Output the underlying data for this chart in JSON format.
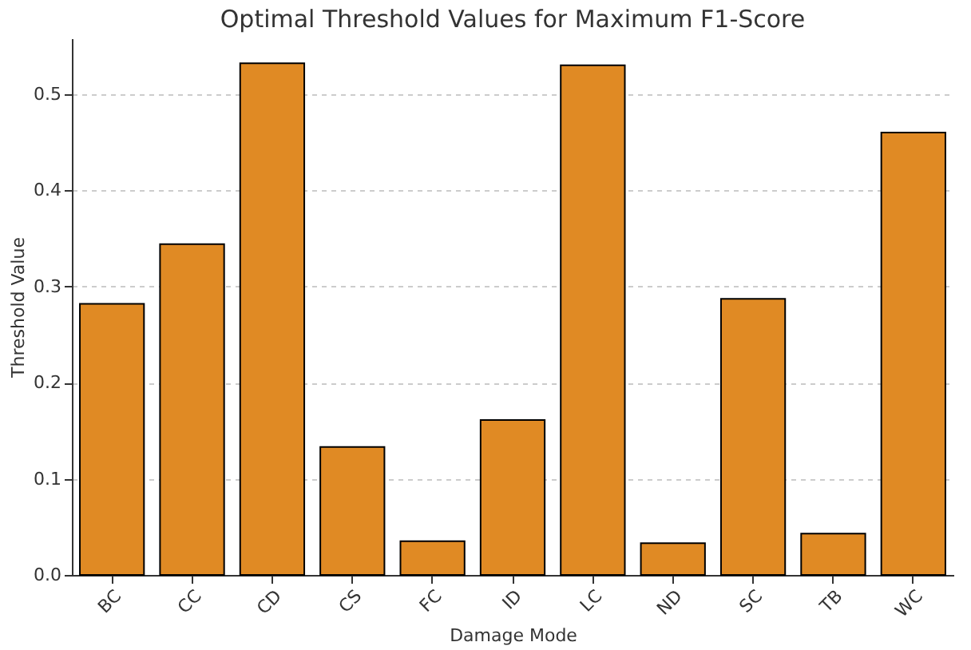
{
  "chart_data": {
    "type": "bar",
    "title": "Optimal Threshold Values for Maximum F1-Score",
    "xlabel": "Damage Mode",
    "ylabel": "Threshold Value",
    "categories": [
      "BC",
      "CC",
      "CD",
      "CS",
      "FC",
      "ID",
      "LC",
      "ND",
      "SC",
      "TB",
      "WC"
    ],
    "values": [
      0.282,
      0.344,
      0.532,
      0.133,
      0.035,
      0.161,
      0.53,
      0.033,
      0.287,
      0.043,
      0.46
    ],
    "color": "#e08a24",
    "ylim": [
      0,
      0.558
    ],
    "yticks": [
      {
        "value": 0,
        "label": "0.0"
      },
      0.1,
      0.2,
      0.3,
      0.4,
      0.5
    ],
    "grid": "y"
  }
}
